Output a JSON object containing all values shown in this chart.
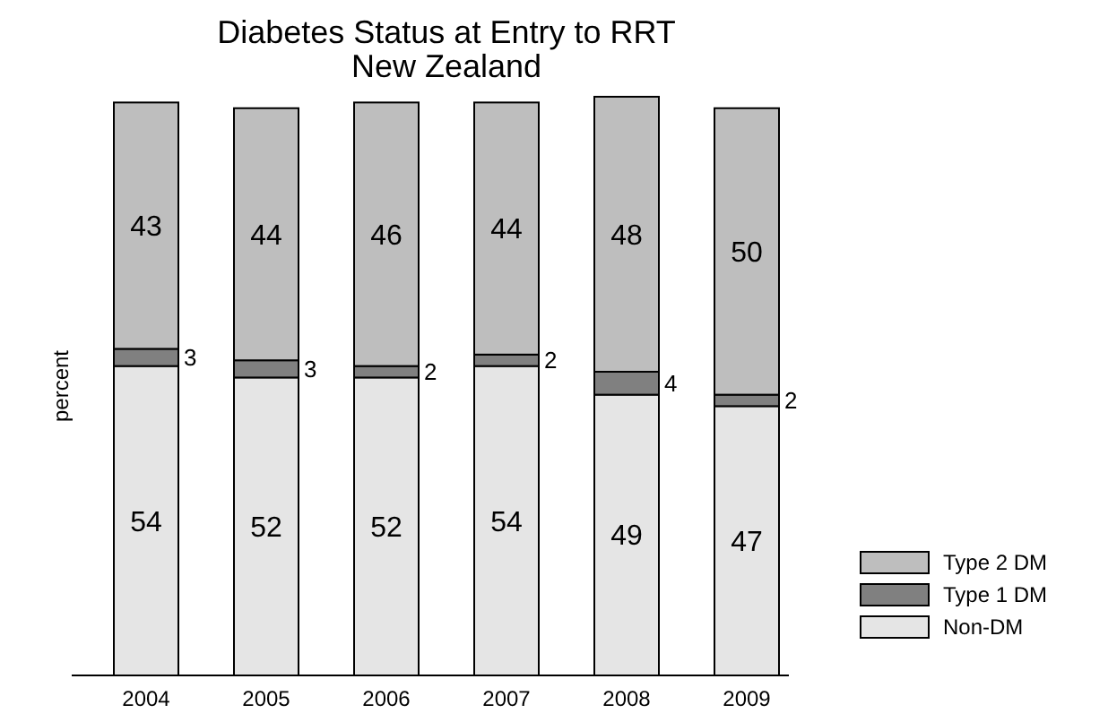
{
  "chart_data": {
    "type": "bar",
    "title": "Diabetes Status at Entry to RRT\nNew Zealand",
    "ylabel": "percent",
    "stacked": true,
    "data_labels": true,
    "legend": "bottom right",
    "categories": [
      "2004",
      "2005",
      "2006",
      "2007",
      "2008",
      "2009"
    ],
    "series": [
      {
        "name": "Non-DM",
        "color": "#e5e5e5",
        "values": [
          54,
          52,
          52,
          54,
          49,
          47
        ]
      },
      {
        "name": "Type 1 DM",
        "color": "#808080",
        "values": [
          3,
          3,
          2,
          2,
          4,
          2
        ]
      },
      {
        "name": "Type 2 DM",
        "color": "#bebebe",
        "values": [
          43,
          44,
          46,
          44,
          48,
          50
        ]
      }
    ]
  }
}
